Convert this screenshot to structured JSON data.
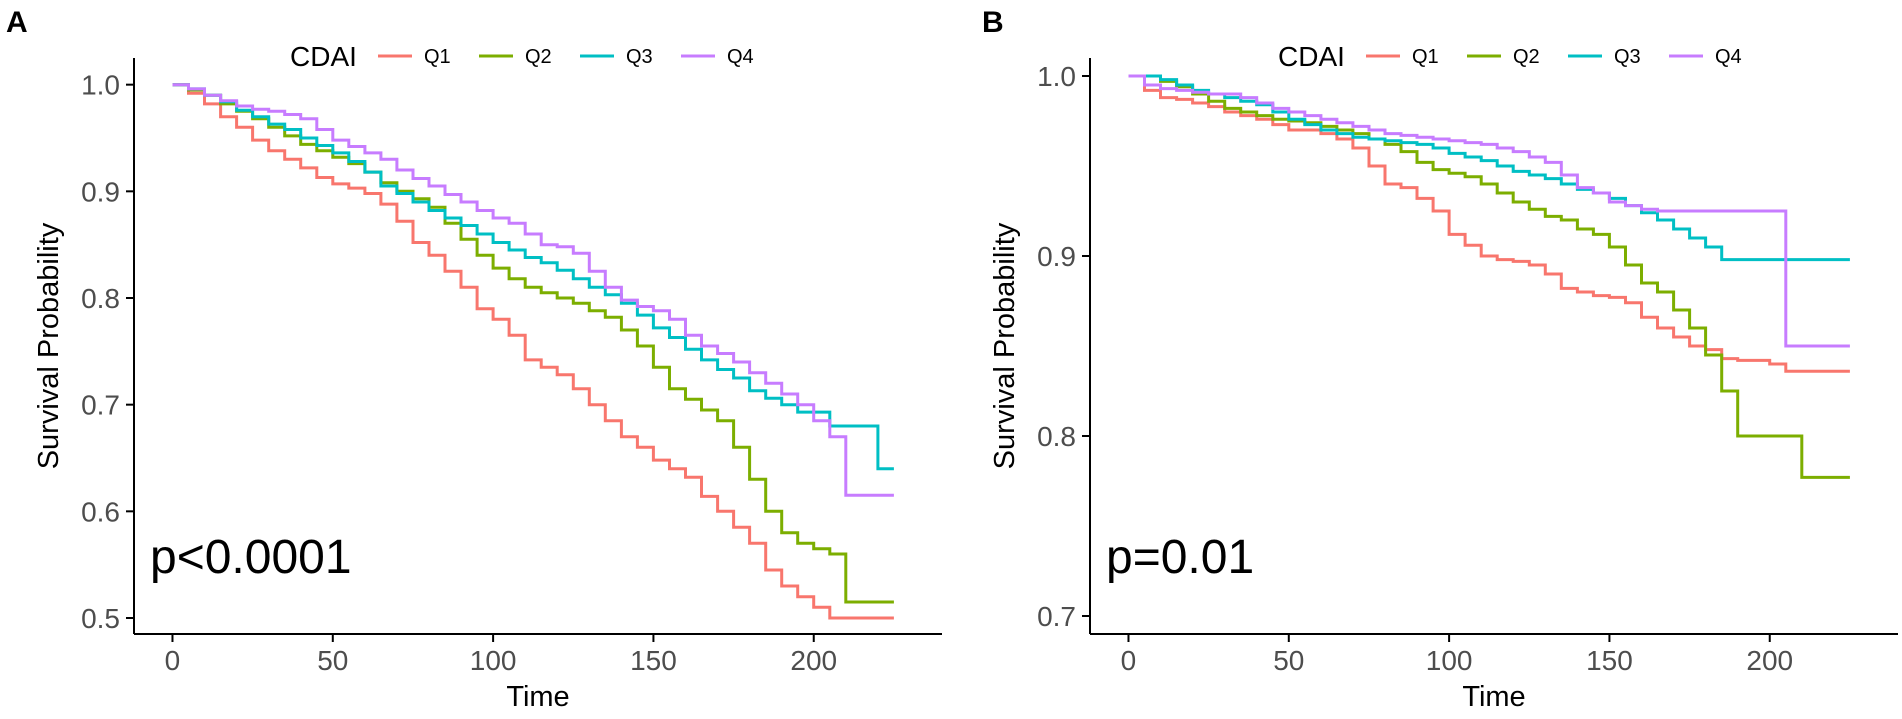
{
  "chart_data": [
    {
      "type": "line",
      "panel_label": "A",
      "xlabel": "Time",
      "ylabel": "Survival Probability",
      "xlim": [
        -12,
        240
      ],
      "ylim": [
        0.485,
        1.025
      ],
      "xticks": [
        "0",
        "50",
        "100",
        "150",
        "200"
      ],
      "yticks": [
        "0.5",
        "0.6",
        "0.7",
        "0.8",
        "0.9",
        "1.0"
      ],
      "legend_title": "CDAI",
      "legend_position": "top",
      "pvalue": "p<0.0001",
      "series": [
        {
          "name": "Q1",
          "color": "#F8766D",
          "x": [
            0,
            5,
            10,
            15,
            20,
            25,
            30,
            35,
            40,
            45,
            50,
            55,
            60,
            65,
            70,
            75,
            80,
            85,
            90,
            95,
            100,
            105,
            110,
            115,
            120,
            125,
            130,
            135,
            140,
            145,
            150,
            155,
            160,
            165,
            170,
            175,
            180,
            185,
            190,
            195,
            200,
            205,
            210,
            215,
            220,
            225
          ],
          "y": [
            1.0,
            0.992,
            0.982,
            0.97,
            0.96,
            0.948,
            0.938,
            0.93,
            0.922,
            0.913,
            0.907,
            0.903,
            0.898,
            0.888,
            0.872,
            0.852,
            0.84,
            0.825,
            0.81,
            0.79,
            0.78,
            0.765,
            0.742,
            0.735,
            0.728,
            0.715,
            0.7,
            0.685,
            0.67,
            0.66,
            0.648,
            0.64,
            0.632,
            0.614,
            0.6,
            0.585,
            0.57,
            0.545,
            0.53,
            0.52,
            0.51,
            0.5,
            0.5,
            0.5,
            0.5,
            0.5
          ]
        },
        {
          "name": "Q2",
          "color": "#7CAE00",
          "x": [
            0,
            5,
            10,
            15,
            20,
            25,
            30,
            35,
            40,
            45,
            50,
            55,
            60,
            65,
            70,
            75,
            80,
            85,
            90,
            95,
            100,
            105,
            110,
            115,
            120,
            125,
            130,
            135,
            140,
            145,
            150,
            155,
            160,
            165,
            170,
            175,
            180,
            185,
            190,
            195,
            200,
            205,
            210,
            215,
            220,
            225
          ],
          "y": [
            1.0,
            0.995,
            0.99,
            0.982,
            0.975,
            0.968,
            0.96,
            0.952,
            0.944,
            0.938,
            0.932,
            0.926,
            0.918,
            0.908,
            0.9,
            0.893,
            0.885,
            0.87,
            0.855,
            0.84,
            0.828,
            0.818,
            0.81,
            0.805,
            0.8,
            0.795,
            0.788,
            0.782,
            0.77,
            0.755,
            0.735,
            0.715,
            0.705,
            0.695,
            0.685,
            0.66,
            0.63,
            0.6,
            0.58,
            0.57,
            0.565,
            0.56,
            0.515,
            0.515,
            0.515,
            0.515
          ]
        },
        {
          "name": "Q3",
          "color": "#00BFC4",
          "x": [
            0,
            5,
            10,
            15,
            20,
            25,
            30,
            35,
            40,
            45,
            50,
            55,
            60,
            65,
            70,
            75,
            80,
            85,
            90,
            95,
            100,
            105,
            110,
            115,
            120,
            125,
            130,
            135,
            140,
            145,
            150,
            155,
            160,
            165,
            170,
            175,
            180,
            185,
            190,
            195,
            200,
            205,
            210,
            215,
            220,
            225
          ],
          "y": [
            1.0,
            0.996,
            0.99,
            0.984,
            0.976,
            0.97,
            0.963,
            0.958,
            0.95,
            0.943,
            0.936,
            0.928,
            0.918,
            0.905,
            0.898,
            0.89,
            0.882,
            0.875,
            0.868,
            0.86,
            0.852,
            0.845,
            0.838,
            0.833,
            0.826,
            0.818,
            0.81,
            0.803,
            0.795,
            0.784,
            0.772,
            0.763,
            0.752,
            0.742,
            0.733,
            0.725,
            0.713,
            0.706,
            0.7,
            0.693,
            0.693,
            0.68,
            0.68,
            0.68,
            0.64,
            0.64
          ]
        },
        {
          "name": "Q4",
          "color": "#C77CFF",
          "x": [
            0,
            5,
            10,
            15,
            20,
            25,
            30,
            35,
            40,
            45,
            50,
            55,
            60,
            65,
            70,
            75,
            80,
            85,
            90,
            95,
            100,
            105,
            110,
            115,
            120,
            125,
            130,
            135,
            140,
            145,
            150,
            155,
            160,
            165,
            170,
            175,
            180,
            185,
            190,
            195,
            200,
            205,
            210,
            215,
            220,
            225
          ],
          "y": [
            1.0,
            0.996,
            0.99,
            0.985,
            0.98,
            0.977,
            0.975,
            0.972,
            0.968,
            0.958,
            0.948,
            0.942,
            0.936,
            0.93,
            0.92,
            0.912,
            0.905,
            0.897,
            0.89,
            0.882,
            0.875,
            0.87,
            0.86,
            0.85,
            0.848,
            0.842,
            0.825,
            0.81,
            0.798,
            0.792,
            0.788,
            0.78,
            0.765,
            0.755,
            0.748,
            0.74,
            0.73,
            0.72,
            0.71,
            0.7,
            0.685,
            0.67,
            0.615,
            0.615,
            0.615,
            0.615
          ]
        }
      ]
    },
    {
      "type": "line",
      "panel_label": "B",
      "xlabel": "Time",
      "ylabel": "Survival Probability",
      "xlim": [
        -12,
        240
      ],
      "ylim": [
        0.69,
        1.01
      ],
      "xticks": [
        "0",
        "50",
        "100",
        "150",
        "200"
      ],
      "yticks": [
        "0.7",
        "0.8",
        "0.9",
        "1.0"
      ],
      "legend_title": "CDAI",
      "legend_position": "top",
      "pvalue": "p=0.01",
      "series": [
        {
          "name": "Q1",
          "color": "#F8766D",
          "x": [
            0,
            5,
            10,
            15,
            20,
            25,
            30,
            35,
            40,
            45,
            50,
            55,
            60,
            65,
            70,
            75,
            80,
            85,
            90,
            95,
            100,
            105,
            110,
            115,
            120,
            125,
            130,
            135,
            140,
            145,
            150,
            155,
            160,
            165,
            170,
            175,
            180,
            185,
            190,
            195,
            200,
            205,
            210,
            215,
            220,
            225
          ],
          "y": [
            1.0,
            0.992,
            0.988,
            0.987,
            0.985,
            0.983,
            0.98,
            0.978,
            0.976,
            0.973,
            0.97,
            0.97,
            0.968,
            0.965,
            0.96,
            0.95,
            0.94,
            0.938,
            0.932,
            0.925,
            0.912,
            0.906,
            0.9,
            0.898,
            0.897,
            0.895,
            0.89,
            0.882,
            0.88,
            0.878,
            0.877,
            0.874,
            0.866,
            0.86,
            0.855,
            0.85,
            0.848,
            0.843,
            0.842,
            0.842,
            0.84,
            0.836,
            0.836,
            0.836,
            0.836,
            0.836
          ]
        },
        {
          "name": "Q2",
          "color": "#7CAE00",
          "x": [
            0,
            5,
            10,
            15,
            20,
            25,
            30,
            35,
            40,
            45,
            50,
            55,
            60,
            65,
            70,
            75,
            80,
            85,
            90,
            95,
            100,
            105,
            110,
            115,
            120,
            125,
            130,
            135,
            140,
            145,
            150,
            155,
            160,
            165,
            170,
            175,
            180,
            185,
            190,
            195,
            200,
            205,
            210,
            215,
            220,
            225
          ],
          "y": [
            1.0,
            1.0,
            0.997,
            0.994,
            0.99,
            0.986,
            0.982,
            0.98,
            0.978,
            0.976,
            0.975,
            0.974,
            0.972,
            0.97,
            0.968,
            0.965,
            0.962,
            0.958,
            0.952,
            0.948,
            0.946,
            0.944,
            0.94,
            0.935,
            0.93,
            0.926,
            0.922,
            0.92,
            0.915,
            0.912,
            0.905,
            0.895,
            0.885,
            0.88,
            0.87,
            0.86,
            0.845,
            0.825,
            0.8,
            0.8,
            0.8,
            0.8,
            0.777,
            0.777,
            0.777,
            0.777
          ]
        },
        {
          "name": "Q3",
          "color": "#00BFC4",
          "x": [
            0,
            5,
            10,
            15,
            20,
            25,
            30,
            35,
            40,
            45,
            50,
            55,
            60,
            65,
            70,
            75,
            80,
            85,
            90,
            95,
            100,
            105,
            110,
            115,
            120,
            125,
            130,
            135,
            140,
            145,
            150,
            155,
            160,
            165,
            170,
            175,
            180,
            185,
            190,
            195,
            200,
            205,
            210,
            215,
            220,
            225
          ],
          "y": [
            1.0,
            1.0,
            0.998,
            0.995,
            0.992,
            0.99,
            0.988,
            0.986,
            0.984,
            0.98,
            0.976,
            0.973,
            0.97,
            0.968,
            0.966,
            0.965,
            0.964,
            0.963,
            0.962,
            0.96,
            0.957,
            0.955,
            0.953,
            0.95,
            0.947,
            0.945,
            0.943,
            0.94,
            0.937,
            0.935,
            0.932,
            0.928,
            0.924,
            0.92,
            0.915,
            0.91,
            0.905,
            0.898,
            0.898,
            0.898,
            0.898,
            0.898,
            0.898,
            0.898,
            0.898,
            0.898
          ]
        },
        {
          "name": "Q4",
          "color": "#C77CFF",
          "x": [
            0,
            5,
            10,
            15,
            20,
            25,
            30,
            35,
            40,
            45,
            50,
            55,
            60,
            65,
            70,
            75,
            80,
            85,
            90,
            95,
            100,
            105,
            110,
            115,
            120,
            125,
            130,
            135,
            140,
            145,
            150,
            155,
            160,
            165,
            170,
            175,
            180,
            185,
            190,
            195,
            200,
            205,
            210,
            215,
            220,
            225
          ],
          "y": [
            1.0,
            0.995,
            0.993,
            0.992,
            0.991,
            0.99,
            0.99,
            0.988,
            0.985,
            0.982,
            0.98,
            0.978,
            0.976,
            0.974,
            0.972,
            0.97,
            0.968,
            0.967,
            0.966,
            0.965,
            0.964,
            0.963,
            0.962,
            0.96,
            0.958,
            0.955,
            0.952,
            0.945,
            0.938,
            0.935,
            0.93,
            0.928,
            0.926,
            0.925,
            0.925,
            0.925,
            0.925,
            0.925,
            0.925,
            0.925,
            0.925,
            0.85,
            0.85,
            0.85,
            0.85,
            0.85
          ]
        }
      ]
    }
  ]
}
